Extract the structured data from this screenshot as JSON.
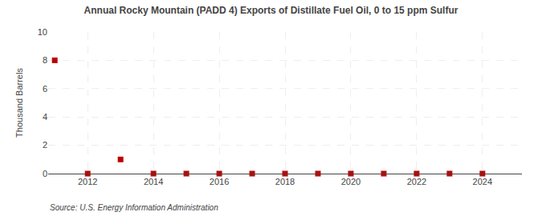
{
  "chart_data": {
    "type": "scatter",
    "title": "Annual Rocky Mountain (PADD 4) Exports of Distillate Fuel Oil, 0 to 15 ppm Sulfur",
    "y_label": "Thousand Barrels",
    "source": "Source: U.S. Energy Information Administration",
    "x": [
      2011,
      2012,
      2013,
      2014,
      2015,
      2016,
      2017,
      2018,
      2019,
      2020,
      2021,
      2022,
      2023,
      2024
    ],
    "values": [
      8,
      0,
      1,
      0,
      0,
      0,
      0,
      0,
      0,
      0,
      0,
      0,
      0,
      0
    ],
    "color": "#bb0000",
    "marker": "square",
    "xlim": [
      2010.8,
      2025.2
    ],
    "xticks": [
      2012,
      2014,
      2016,
      2018,
      2020,
      2022,
      2024
    ],
    "ylim": [
      0,
      10
    ],
    "yticks": [
      0,
      2,
      4,
      6,
      8,
      10
    ],
    "grid": true
  }
}
